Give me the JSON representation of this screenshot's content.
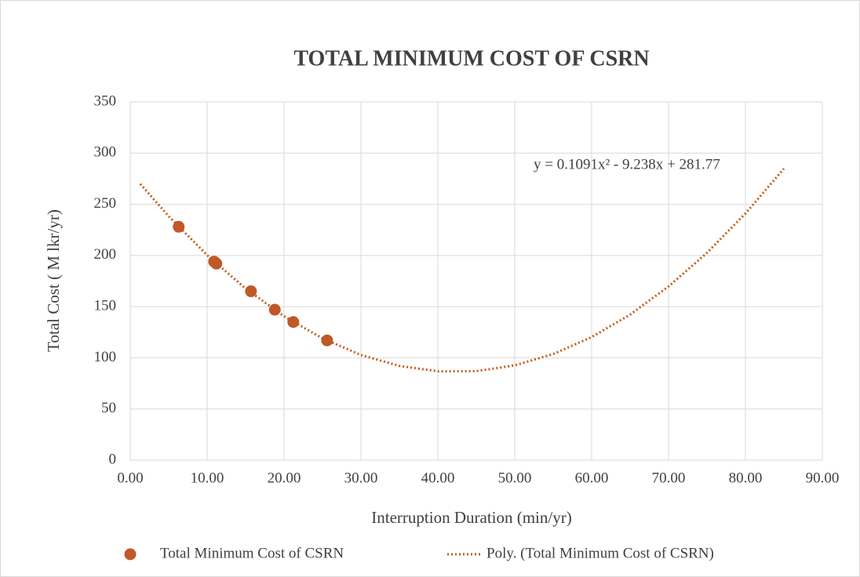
{
  "chart_data": {
    "type": "scatter",
    "title": "TOTAL MINIMUM COST OF CSRN",
    "xlabel": "Interruption Duration  (min/yr)",
    "ylabel": "Total Cost ( M lkr/yr)",
    "annotation": "y = 0.1091x² - 9.238x + 281.77",
    "xlim": [
      0,
      90
    ],
    "ylim": [
      0,
      350
    ],
    "xticks": [
      {
        "value": 0,
        "label": "0.00"
      },
      {
        "value": 10,
        "label": "10.00"
      },
      {
        "value": 20,
        "label": "20.00"
      },
      {
        "value": 30,
        "label": "30.00"
      },
      {
        "value": 40,
        "label": "40.00"
      },
      {
        "value": 50,
        "label": "50.00"
      },
      {
        "value": 60,
        "label": "60.00"
      },
      {
        "value": 70,
        "label": "70.00"
      },
      {
        "value": 80,
        "label": "80.00"
      },
      {
        "value": 90,
        "label": "90.00"
      }
    ],
    "yticks": [
      0,
      50,
      100,
      150,
      200,
      250,
      300,
      350
    ],
    "grid": true,
    "legend": "bottom",
    "series": [
      {
        "name": "Total Minimum Cost of CSRN",
        "color": "#c0582a",
        "marker": "circle",
        "x": [
          6.3,
          10.9,
          11.2,
          15.7,
          18.8,
          21.2,
          25.6
        ],
        "values": [
          228,
          194,
          192,
          165,
          147,
          135,
          117
        ]
      },
      {
        "name": "Poly. (Total Minimum Cost of CSRN)",
        "color": "#c55a11",
        "line": "dotted",
        "x": [
          1.3,
          5,
          10,
          15,
          20,
          25,
          30,
          35,
          40,
          45,
          50,
          55,
          60,
          65,
          70,
          75,
          80,
          85
        ],
        "values": [
          269.9,
          238.3,
          200.3,
          167.7,
          140.6,
          119.0,
          102.8,
          92.1,
          86.8,
          87.0,
          92.6,
          103.7,
          120.3,
          142.2,
          169.7,
          202.6,
          241.0,
          284.8
        ]
      }
    ]
  }
}
